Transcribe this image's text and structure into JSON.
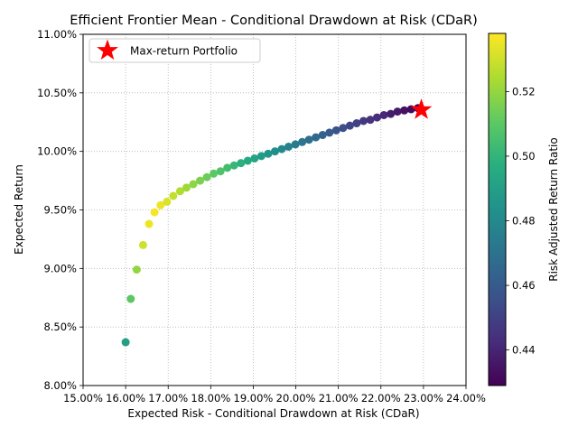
{
  "chart_data": {
    "type": "scatter",
    "title": "Efficient Frontier Mean - Conditional Drawdown at Risk (CDaR)",
    "xlabel": "Expected Risk - Conditional Drawdown at Risk (CDaR)",
    "ylabel": "Expected Return",
    "xlim": [
      0.15,
      0.24
    ],
    "ylim": [
      0.08,
      0.11
    ],
    "xticks": [
      "15.00%",
      "16.00%",
      "17.00%",
      "18.00%",
      "19.00%",
      "20.00%",
      "21.00%",
      "22.00%",
      "23.00%",
      "24.00%"
    ],
    "yticks": [
      "8.00%",
      "8.50%",
      "9.00%",
      "9.50%",
      "10.00%",
      "10.50%",
      "11.00%"
    ],
    "grid": true,
    "colormap": "viridis",
    "colorbar": {
      "label": "Risk Adjusted Return Ratio",
      "range": [
        0.429,
        0.538
      ],
      "ticks": [
        "0.44",
        "0.46",
        "0.48",
        "0.50",
        "0.52"
      ]
    },
    "legend": {
      "position": "top-left",
      "entries": [
        "Max-return Portfolio"
      ]
    },
    "highlight": {
      "name": "Max-return Portfolio",
      "x": 0.2295,
      "y": 0.10355,
      "color": "#ff0000",
      "marker": "star"
    },
    "points": {
      "x": [
        0.16,
        0.1612,
        0.1626,
        0.1641,
        0.1655,
        0.1668,
        0.1682,
        0.1697,
        0.1712,
        0.1728,
        0.1743,
        0.1759,
        0.1775,
        0.1791,
        0.1807,
        0.1823,
        0.1839,
        0.1855,
        0.1871,
        0.1887,
        0.1903,
        0.1919,
        0.1935,
        0.1951,
        0.1967,
        0.1983,
        0.1999,
        0.2015,
        0.2031,
        0.2047,
        0.2063,
        0.2079,
        0.2095,
        0.2111,
        0.2127,
        0.2143,
        0.2159,
        0.2175,
        0.2191,
        0.2207,
        0.2223,
        0.2239,
        0.2255,
        0.2271,
        0.2287
      ],
      "y": [
        0.0837,
        0.0874,
        0.0899,
        0.092,
        0.0938,
        0.0948,
        0.0954,
        0.0957,
        0.0962,
        0.0966,
        0.0969,
        0.0972,
        0.0975,
        0.0978,
        0.0981,
        0.0983,
        0.0986,
        0.0988,
        0.099,
        0.0992,
        0.0994,
        0.0996,
        0.0998,
        0.1,
        0.1002,
        0.1004,
        0.1006,
        0.1008,
        0.101,
        0.1012,
        0.1014,
        0.1016,
        0.1018,
        0.102,
        0.1022,
        0.1024,
        0.1026,
        0.1027,
        0.1029,
        0.1031,
        0.1032,
        0.1034,
        0.1035,
        0.1036,
        0.1037
      ],
      "ratio": [
        0.49,
        0.51,
        0.52,
        0.53,
        0.535,
        0.537,
        0.535,
        0.532,
        0.528,
        0.525,
        0.522,
        0.519,
        0.516,
        0.513,
        0.51,
        0.507,
        0.504,
        0.501,
        0.498,
        0.495,
        0.492,
        0.489,
        0.486,
        0.483,
        0.48,
        0.477,
        0.474,
        0.471,
        0.469,
        0.466,
        0.463,
        0.46,
        0.457,
        0.455,
        0.452,
        0.45,
        0.447,
        0.445,
        0.443,
        0.441,
        0.438,
        0.436,
        0.434,
        0.432,
        0.43
      ]
    }
  }
}
